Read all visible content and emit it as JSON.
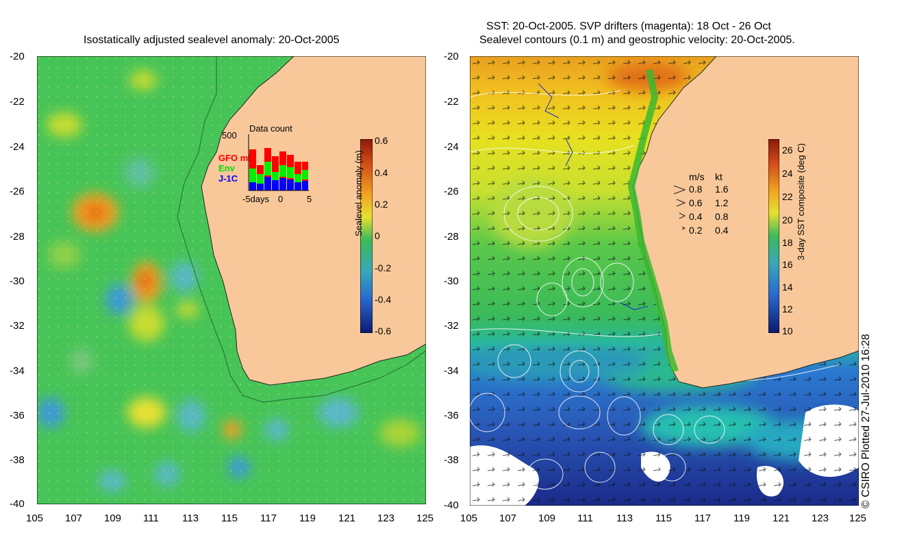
{
  "left_panel": {
    "title": "Isostatically adjusted sealevel anomaly: 20-Oct-2005",
    "y_ticks": [
      "-20",
      "-22",
      "-24",
      "-26",
      "-28",
      "-30",
      "-32",
      "-34",
      "-36",
      "-38",
      "-40"
    ],
    "x_ticks": [
      "105",
      "107",
      "109",
      "111",
      "113",
      "115",
      "117",
      "119",
      "121",
      "123",
      "125"
    ],
    "colorbar": {
      "label": "Sealevel anomaly (m)",
      "ticks": [
        "0.6",
        "0.4",
        "0.2",
        "0",
        "-0.2",
        "-0.4",
        "-0.6"
      ]
    },
    "inset": {
      "title": "Data count",
      "ymax_label": "500",
      "legend": [
        {
          "name": "GFO mh",
          "color": "#ff0000"
        },
        {
          "name": "Env",
          "color": "#00ee00"
        },
        {
          "name": "J-1C",
          "color": "#0000ff"
        }
      ],
      "x_labels": [
        "-5days",
        "0",
        "5"
      ]
    }
  },
  "right_panel": {
    "title_line1": "SST: 20-Oct-2005. SVP drifters (magenta): 18 Oct - 26 Oct",
    "title_line2": "Sealevel contours (0.1 m) and geostrophic velocity: 20-Oct-2005.",
    "y_ticks": [
      "-20",
      "-22",
      "-24",
      "-26",
      "-28",
      "-30",
      "-32",
      "-34",
      "-36",
      "-38",
      "-40"
    ],
    "x_ticks": [
      "105",
      "107",
      "109",
      "111",
      "113",
      "115",
      "117",
      "119",
      "121",
      "123",
      "125"
    ],
    "colorbar": {
      "label": "3-day SST composite (deg C)",
      "ticks": [
        "26",
        "24",
        "22",
        "20",
        "18",
        "16",
        "14",
        "12",
        "10"
      ]
    },
    "speed_legend": {
      "header_ms": "m/s",
      "header_kt": "kt",
      "rows": [
        {
          "ms": "0.8",
          "kt": "1.6"
        },
        {
          "ms": "0.6",
          "kt": "1.2"
        },
        {
          "ms": "0.4",
          "kt": "0.8"
        },
        {
          "ms": "0.2",
          "kt": "0.4"
        }
      ]
    }
  },
  "credit": "© CSIRO Plotted 27-Jul-2010 16:28",
  "colors": {
    "land": "#f8c89a",
    "ocean_base": "#3dba5a",
    "sst_cold": "#1a2a9a",
    "sst_warm": "#e8a020"
  }
}
